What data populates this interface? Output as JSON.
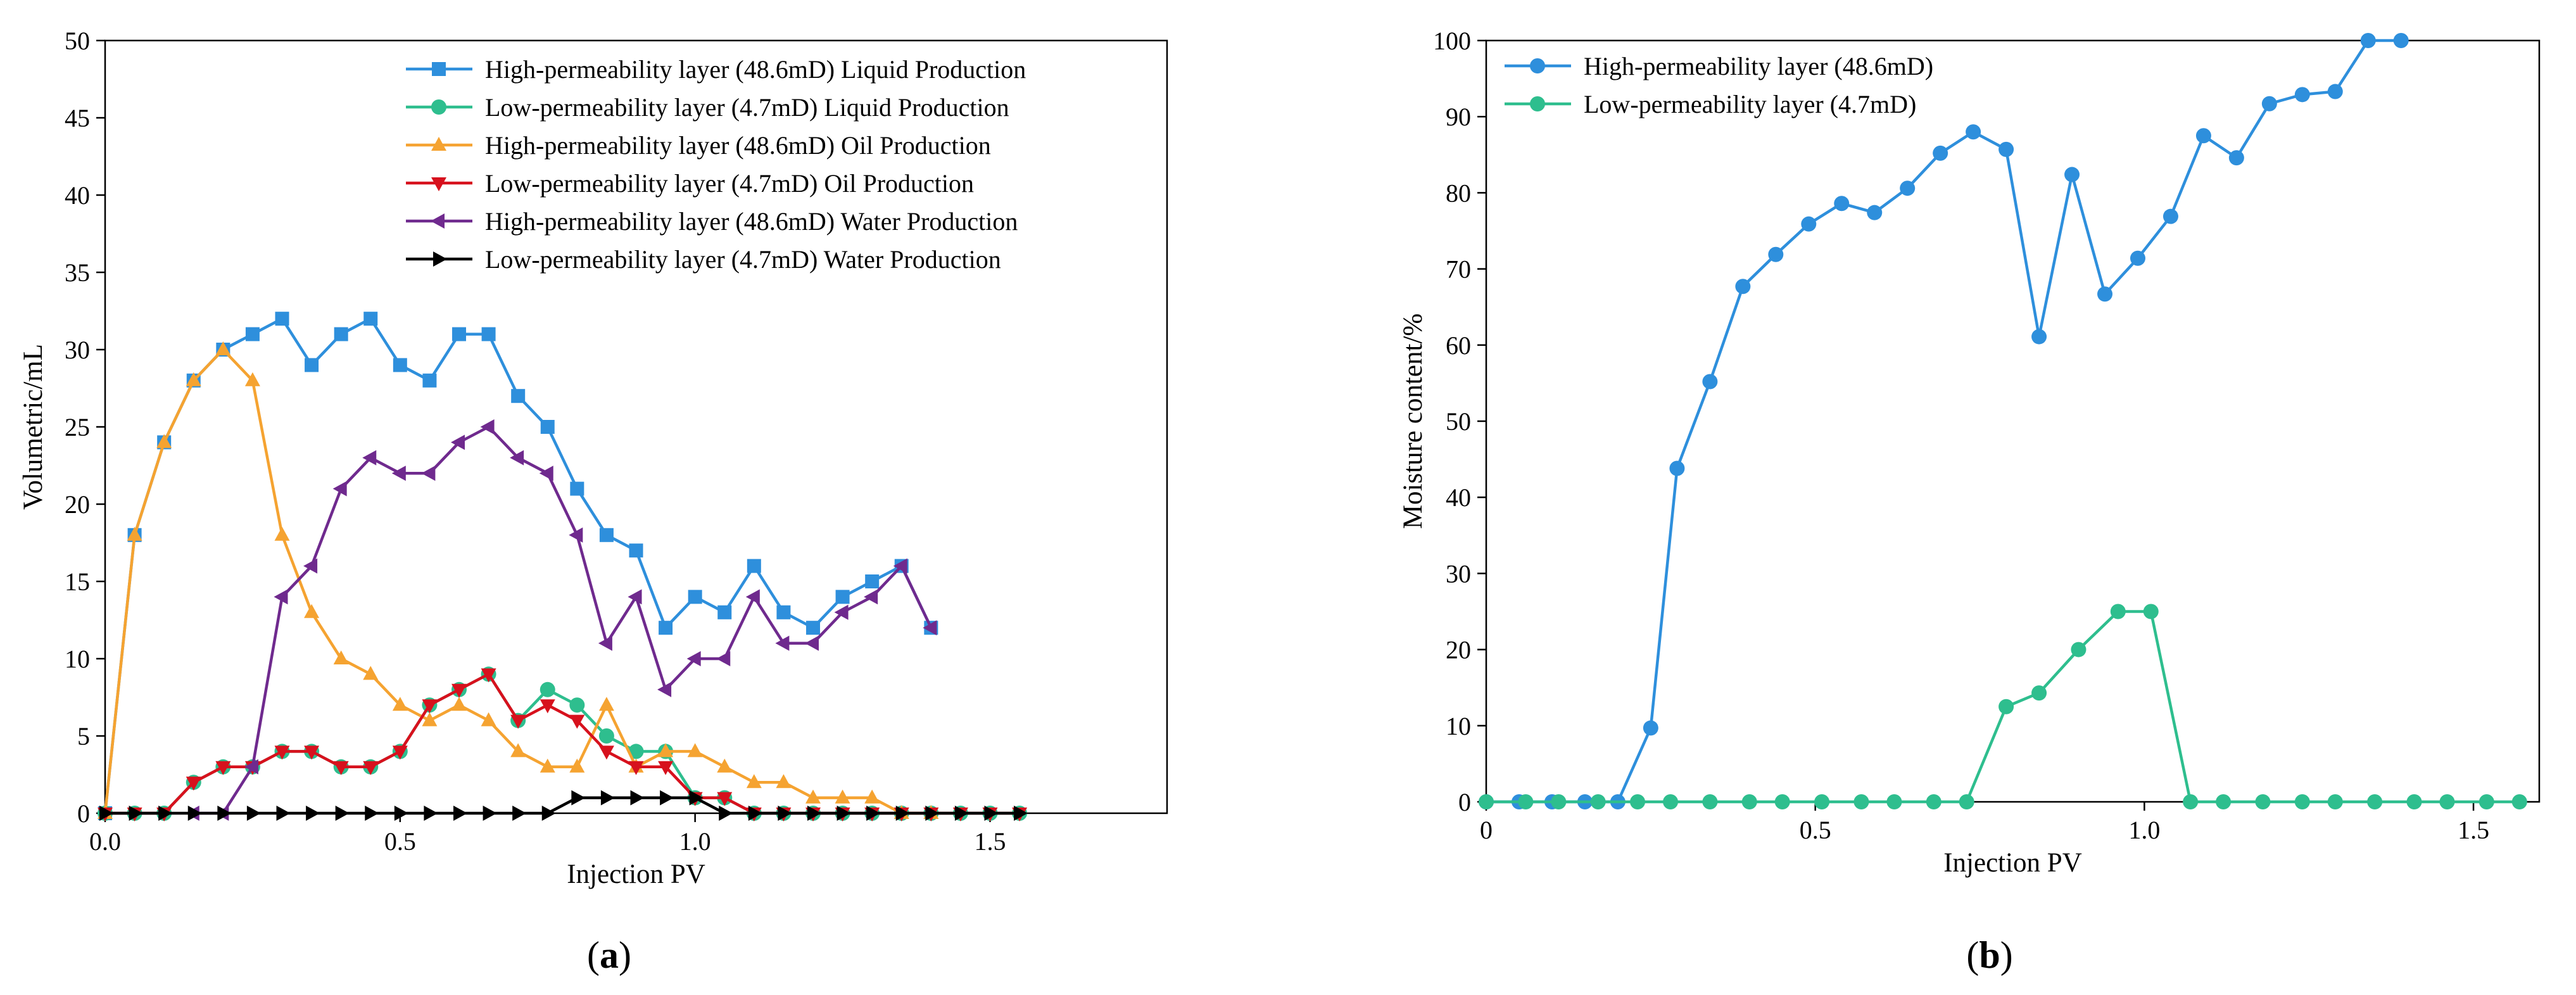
{
  "chart_data": [
    {
      "type": "line",
      "panel_label": "a",
      "xlabel": "Injection PV",
      "ylabel": "Volumetric/mL",
      "xlim": [
        0,
        1.8
      ],
      "ylim": [
        0,
        50
      ],
      "xticks": [
        0,
        0.5,
        1,
        1.5
      ],
      "xtick_labels": [
        "0.0",
        "0.5",
        "1.0",
        "1.5"
      ],
      "yticks": [
        0,
        5,
        10,
        15,
        20,
        25,
        30,
        35,
        40,
        45,
        50
      ],
      "ytick_labels": [
        "0",
        "5",
        "10",
        "15",
        "20",
        "25",
        "30",
        "35",
        "40",
        "45",
        "50"
      ],
      "grid": false,
      "legend_position": "top-right",
      "series": [
        {
          "name": "High-permeability layer (48.6mD) Liquid Production",
          "color": "#2E8FDC",
          "marker": "square",
          "x": [
            0.0,
            0.05,
            0.1,
            0.15,
            0.2,
            0.25,
            0.3,
            0.35,
            0.4,
            0.45,
            0.5,
            0.55,
            0.6,
            0.65,
            0.7,
            0.75,
            0.8,
            0.85,
            0.9,
            0.95,
            1.0,
            1.05,
            1.1,
            1.15,
            1.2,
            1.25,
            1.3,
            1.35,
            1.4
          ],
          "y": [
            0,
            18,
            24,
            28,
            30,
            31,
            32,
            29,
            31,
            32,
            29,
            28,
            31,
            31,
            27,
            25,
            21,
            18,
            17,
            12,
            14,
            13,
            16,
            13,
            12,
            14,
            15,
            16,
            12
          ]
        },
        {
          "name": "Low-permeability layer (4.7mD) Liquid Production",
          "color": "#2EBE8E",
          "marker": "circle",
          "x": [
            0.0,
            0.05,
            0.1,
            0.15,
            0.2,
            0.25,
            0.3,
            0.35,
            0.4,
            0.45,
            0.5,
            0.55,
            0.6,
            0.65,
            0.7,
            0.75,
            0.8,
            0.85,
            0.9,
            0.95,
            1.0,
            1.05,
            1.1,
            1.15,
            1.2,
            1.25,
            1.3,
            1.35,
            1.4,
            1.45,
            1.5,
            1.55
          ],
          "y": [
            0,
            0,
            0,
            2,
            3,
            3,
            4,
            4,
            3,
            3,
            4,
            7,
            8,
            9,
            6,
            8,
            7,
            5,
            4,
            4,
            1,
            1,
            0,
            0,
            0,
            0,
            0,
            0,
            0,
            0,
            0,
            0
          ]
        },
        {
          "name": "High-permeability layer (48.6mD) Oil Production",
          "color": "#F5A331",
          "marker": "triangle-up",
          "x": [
            0.0,
            0.05,
            0.1,
            0.15,
            0.2,
            0.25,
            0.3,
            0.35,
            0.4,
            0.45,
            0.5,
            0.55,
            0.6,
            0.65,
            0.7,
            0.75,
            0.8,
            0.85,
            0.9,
            0.95,
            1.0,
            1.05,
            1.1,
            1.15,
            1.2,
            1.25,
            1.3,
            1.35,
            1.4
          ],
          "y": [
            0,
            18,
            24,
            28,
            30,
            28,
            18,
            13,
            10,
            9,
            7,
            6,
            7,
            6,
            4,
            3,
            3,
            7,
            3,
            4,
            4,
            3,
            2,
            2,
            1,
            1,
            1,
            0,
            0
          ]
        },
        {
          "name": "Low-permeability layer (4.7mD) Oil Production",
          "color": "#D7111D",
          "marker": "triangle-down",
          "x": [
            0.0,
            0.05,
            0.1,
            0.15,
            0.2,
            0.25,
            0.3,
            0.35,
            0.4,
            0.45,
            0.5,
            0.55,
            0.6,
            0.65,
            0.7,
            0.75,
            0.8,
            0.85,
            0.9,
            0.95,
            1.0,
            1.05,
            1.1,
            1.15,
            1.2,
            1.25,
            1.3,
            1.35,
            1.4,
            1.45,
            1.5,
            1.55
          ],
          "y": [
            0,
            0,
            0,
            2,
            3,
            3,
            4,
            4,
            3,
            3,
            4,
            7,
            8,
            9,
            6,
            7,
            6,
            4,
            3,
            3,
            1,
            1,
            0,
            0,
            0,
            0,
            0,
            0,
            0,
            0,
            0,
            0
          ]
        },
        {
          "name": "High-permeability layer (48.6mD) Water Production",
          "color": "#6F2A8E",
          "marker": "triangle-left",
          "x": [
            0.15,
            0.2,
            0.25,
            0.3,
            0.35,
            0.4,
            0.45,
            0.5,
            0.55,
            0.6,
            0.65,
            0.7,
            0.75,
            0.8,
            0.85,
            0.9,
            0.95,
            1.0,
            1.05,
            1.1,
            1.15,
            1.2,
            1.25,
            1.3,
            1.35,
            1.4
          ],
          "y": [
            0,
            0,
            3,
            14,
            16,
            21,
            23,
            22,
            22,
            24,
            25,
            23,
            22,
            18,
            11,
            14,
            8,
            10,
            10,
            14,
            11,
            11,
            13,
            14,
            16,
            12
          ]
        },
        {
          "name": "Low-permeability layer (4.7mD) Water Production",
          "color": "#000000",
          "marker": "triangle-right",
          "x": [
            0.0,
            0.05,
            0.1,
            0.15,
            0.2,
            0.25,
            0.3,
            0.35,
            0.4,
            0.45,
            0.5,
            0.55,
            0.6,
            0.65,
            0.7,
            0.75,
            0.8,
            0.85,
            0.9,
            0.95,
            1.0,
            1.05,
            1.1,
            1.15,
            1.2,
            1.25,
            1.3,
            1.35,
            1.4,
            1.45,
            1.5,
            1.55
          ],
          "y": [
            0,
            0,
            0,
            0,
            0,
            0,
            0,
            0,
            0,
            0,
            0,
            0,
            0,
            0,
            0,
            0,
            1,
            1,
            1,
            1,
            1,
            0,
            0,
            0,
            0,
            0,
            0,
            0,
            0,
            0,
            0,
            0
          ]
        }
      ]
    },
    {
      "type": "line",
      "panel_label": "b",
      "xlabel": "Injection PV",
      "ylabel": "Moisture content/%",
      "xlim": [
        0,
        1.6
      ],
      "ylim": [
        0,
        100
      ],
      "xticks": [
        0,
        0.5,
        1,
        1.5
      ],
      "xtick_labels": [
        "0",
        "0.5",
        "1.0",
        "1.5"
      ],
      "yticks": [
        0,
        10,
        20,
        30,
        40,
        50,
        60,
        70,
        80,
        90,
        100
      ],
      "ytick_labels": [
        "0",
        "10",
        "20",
        "30",
        "40",
        "50",
        "60",
        "70",
        "80",
        "90",
        "100"
      ],
      "grid": false,
      "legend_position": "top-left",
      "series": [
        {
          "name": "High-permeability layer (48.6mD)",
          "color": "#2E8FDC",
          "marker": "circle",
          "x": [
            0.0,
            0.05,
            0.1,
            0.15,
            0.2,
            0.25,
            0.29,
            0.34,
            0.39,
            0.44,
            0.49,
            0.54,
            0.59,
            0.64,
            0.69,
            0.74,
            0.79,
            0.84,
            0.89,
            0.94,
            0.99,
            1.04,
            1.09,
            1.14,
            1.19,
            1.24,
            1.29,
            1.34,
            1.39
          ],
          "y": [
            0,
            0,
            0,
            0,
            0,
            9.7,
            43.8,
            55.2,
            67.7,
            71.9,
            75.9,
            78.6,
            77.4,
            80.6,
            85.2,
            88.0,
            85.7,
            61.1,
            82.4,
            66.7,
            71.4,
            76.9,
            87.5,
            84.6,
            91.7,
            92.9,
            93.3,
            100,
            100
          ]
        },
        {
          "name": "Low-permeability layer (4.7mD)",
          "color": "#2EBE8E",
          "marker": "circle",
          "x": [
            0.0,
            0.06,
            0.11,
            0.17,
            0.23,
            0.28,
            0.34,
            0.4,
            0.45,
            0.51,
            0.57,
            0.62,
            0.68,
            0.73,
            0.79,
            0.84,
            0.9,
            0.96,
            1.01,
            1.07,
            1.12,
            1.18,
            1.24,
            1.29,
            1.35,
            1.41,
            1.46,
            1.52,
            1.57
          ],
          "y": [
            0,
            0,
            0,
            0,
            0,
            0,
            0,
            0,
            0,
            0,
            0,
            0,
            0,
            0,
            12.5,
            14.3,
            20,
            25,
            25,
            0,
            0,
            0,
            0,
            0,
            0,
            0,
            0,
            0,
            0
          ]
        }
      ]
    }
  ]
}
